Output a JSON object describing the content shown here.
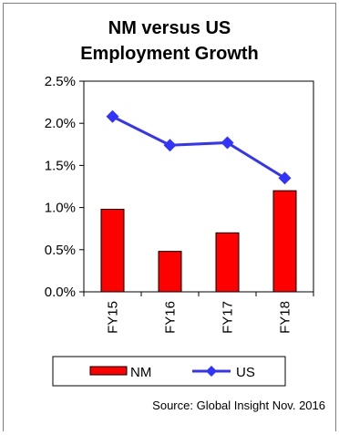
{
  "chart_data": {
    "type": "bar",
    "title_lines": [
      "NM versus US",
      "Employment Growth"
    ],
    "categories": [
      "FY15",
      "FY16",
      "FY17",
      "FY18"
    ],
    "y_ticks": [
      "2.5%",
      "2.0%",
      "1.5%",
      "1.0%",
      "0.5%",
      "0.0%"
    ],
    "ylim": [
      0,
      2.5
    ],
    "series": [
      {
        "name": "NM",
        "type": "bar",
        "color": "#ff0000",
        "edge": "#000000",
        "values": [
          0.98,
          0.48,
          0.7,
          1.2
        ]
      },
      {
        "name": "US",
        "type": "line",
        "color": "#3333ff",
        "values": [
          2.08,
          1.74,
          1.77,
          1.35
        ]
      }
    ],
    "legend": {
      "placement": "bottom"
    },
    "source": "Source: Global Insight Nov. 2016",
    "grid": false
  }
}
